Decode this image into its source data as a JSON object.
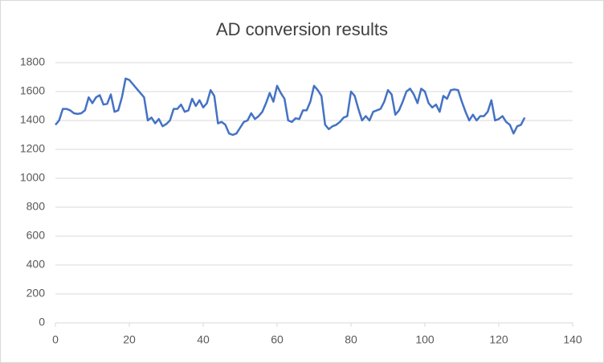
{
  "chart_data": {
    "type": "line",
    "title": "AD conversion results",
    "x": [
      0,
      1,
      2,
      3,
      4,
      5,
      6,
      7,
      8,
      9,
      10,
      11,
      12,
      13,
      14,
      15,
      16,
      17,
      18,
      19,
      20,
      21,
      22,
      23,
      24,
      25,
      26,
      27,
      28,
      29,
      30,
      31,
      32,
      33,
      34,
      35,
      36,
      37,
      38,
      39,
      40,
      41,
      42,
      43,
      44,
      45,
      46,
      47,
      48,
      49,
      50,
      51,
      52,
      53,
      54,
      55,
      56,
      57,
      58,
      59,
      60,
      61,
      62,
      63,
      64,
      65,
      66,
      67,
      68,
      69,
      70,
      71,
      72,
      73,
      74,
      75,
      76,
      77,
      78,
      79,
      80,
      81,
      82,
      83,
      84,
      85,
      86,
      87,
      88,
      89,
      90,
      91,
      92,
      93,
      94,
      95,
      96,
      97,
      98,
      99,
      100,
      101,
      102,
      103,
      104,
      105,
      106,
      107,
      108,
      109,
      110,
      111,
      112,
      113,
      114,
      115,
      116,
      117,
      118,
      119,
      120,
      121,
      122,
      123,
      124,
      125,
      126,
      127
    ],
    "series": [
      {
        "color": "#4472c4",
        "values": [
          1370,
          1400,
          1480,
          1480,
          1470,
          1450,
          1445,
          1450,
          1470,
          1560,
          1520,
          1560,
          1575,
          1510,
          1515,
          1580,
          1460,
          1470,
          1560,
          1690,
          1680,
          1650,
          1620,
          1590,
          1560,
          1400,
          1420,
          1380,
          1410,
          1360,
          1375,
          1400,
          1480,
          1480,
          1510,
          1460,
          1470,
          1550,
          1500,
          1540,
          1490,
          1520,
          1610,
          1570,
          1380,
          1390,
          1370,
          1310,
          1300,
          1310,
          1350,
          1390,
          1400,
          1450,
          1410,
          1430,
          1460,
          1520,
          1590,
          1530,
          1640,
          1590,
          1550,
          1400,
          1390,
          1415,
          1410,
          1470,
          1470,
          1530,
          1640,
          1610,
          1570,
          1370,
          1340,
          1360,
          1370,
          1390,
          1420,
          1430,
          1600,
          1570,
          1480,
          1400,
          1430,
          1400,
          1460,
          1470,
          1480,
          1530,
          1610,
          1580,
          1440,
          1470,
          1530,
          1600,
          1620,
          1580,
          1520,
          1620,
          1600,
          1520,
          1490,
          1510,
          1460,
          1570,
          1550,
          1610,
          1615,
          1610,
          1530,
          1460,
          1400,
          1440,
          1400,
          1430,
          1430,
          1460,
          1540,
          1400,
          1410,
          1430,
          1390,
          1370,
          1310,
          1360,
          1370,
          1420
        ]
      }
    ],
    "xlim": [
      0,
      140
    ],
    "xticks": [
      0,
      20,
      40,
      60,
      80,
      100,
      120,
      140
    ],
    "ylim": [
      0,
      1800
    ],
    "yticks": [
      0,
      200,
      400,
      600,
      800,
      1000,
      1200,
      1400,
      1600,
      1800
    ],
    "grid": true
  }
}
